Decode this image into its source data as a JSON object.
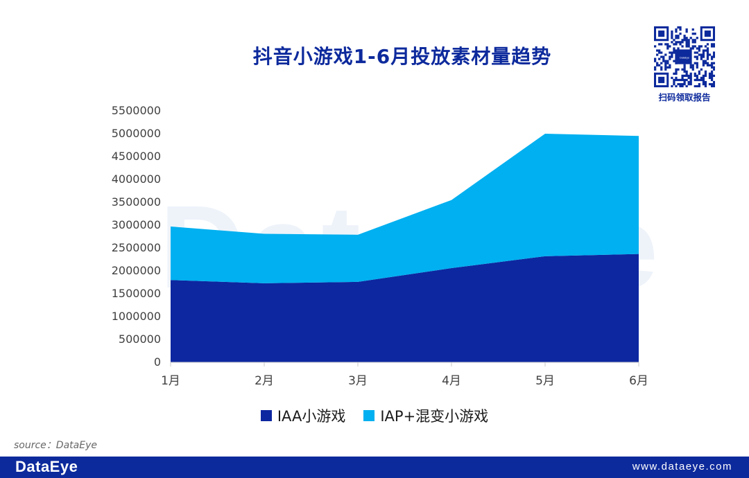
{
  "header": {
    "title": "抖音小游戏1-6月投放素材量趋势",
    "qr_caption": "扫码领取报告",
    "qr_logo_text": "DataEye"
  },
  "watermark": {
    "text": "DataEye"
  },
  "chart_data": {
    "type": "area",
    "stacked": true,
    "title": "抖音小游戏1-6月投放素材量趋势",
    "categories": [
      "1月",
      "2月",
      "3月",
      "4月",
      "5月",
      "6月"
    ],
    "series": [
      {
        "name": "IAA小游戏",
        "values": [
          1800000,
          1730000,
          1760000,
          2060000,
          2320000,
          2370000
        ],
        "color": "#0d27a0"
      },
      {
        "name": "IAP+混变小游戏",
        "values": [
          1170000,
          1080000,
          1030000,
          1490000,
          2680000,
          2580000
        ],
        "color": "#00b0f0"
      }
    ],
    "ylim": [
      0,
      5500000
    ],
    "yticks": [
      "0",
      "500000",
      "1000000",
      "1500000",
      "2000000",
      "2500000",
      "3000000",
      "3500000",
      "4000000",
      "4500000",
      "5000000",
      "5500000"
    ],
    "xlabel": "",
    "ylabel": "",
    "legend_position": "bottom",
    "grid": false
  },
  "source": {
    "text": "source：DataEye"
  },
  "footer": {
    "brand": "DataEye",
    "url": "www.dataeye.com"
  }
}
